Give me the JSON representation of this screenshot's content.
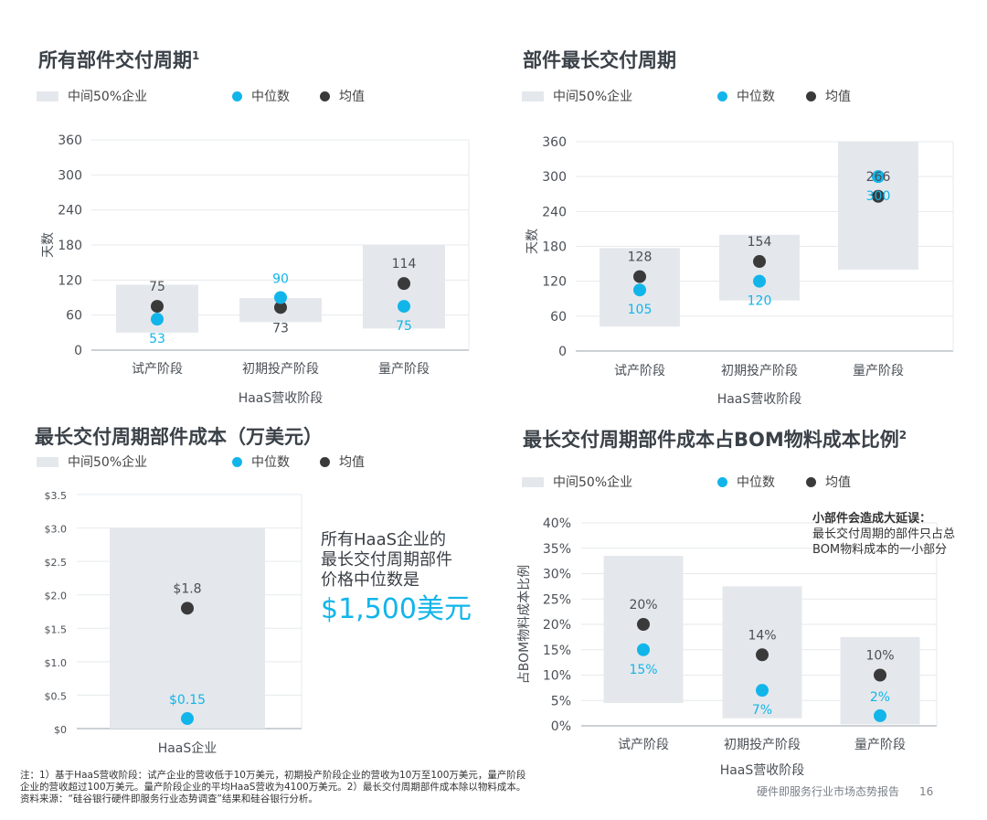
{
  "legend": {
    "iqr": "中间50%企业",
    "median": "中位数",
    "mean": "均值"
  },
  "colors": {
    "iqr_box": "#e4e8ec",
    "median": "#12b5ea",
    "mean": "#3a3a3a",
    "axis": "#9aa3ab",
    "grid": "#e6e9ec",
    "tick": "#4a4f55"
  },
  "panels": {
    "p1": {
      "title": "所有部件交付周期",
      "sup": "1"
    },
    "p2": {
      "title": "部件最长交付周期"
    },
    "p3": {
      "title": "最长交付周期部件成本（万美元）"
    },
    "p4": {
      "title": "最长交付周期部件成本占BOM物料成本比例",
      "sup": "2"
    }
  },
  "callout": {
    "text_lines": [
      "所有HaaS企业的",
      "最长交付周期部件",
      "价格中位数是"
    ],
    "value": "$1,500美元"
  },
  "insight": {
    "bold": "小部件会造成大延误：",
    "text": "最长交付周期的部件只占总BOM物料成本的一小部分"
  },
  "footnote": {
    "line1": "注：1）基于HaaS营收阶段：试产企业的营收低于10万美元，初期投产阶段企业的营收为10万至100万美元，量产阶段",
    "line2": "企业的营收超过100万美元。量产阶段企业的平均HaaS营收为4100万美元。2）最长交付周期部件成本除以物料成本。",
    "line3": "资料来源：“硅谷银行硬件即服务行业态势调查”结果和硅谷银行分析。"
  },
  "report": {
    "name": "硬件即服务行业市场态势报告",
    "page": "16"
  },
  "chart_data": [
    {
      "type": "box",
      "title": "所有部件交付周期",
      "ylabel": "天数",
      "xlabel": "HaaS营收阶段",
      "ylim": [
        0,
        360
      ],
      "yticks": [
        0,
        60,
        120,
        180,
        240,
        300,
        360
      ],
      "ytick_labels": [
        "0",
        "60",
        "120",
        "180",
        "240",
        "300",
        "360"
      ],
      "categories": [
        "试产阶段",
        "初期投产阶段",
        "量产阶段"
      ],
      "q1": [
        30,
        48,
        37
      ],
      "q3": [
        112,
        89,
        180
      ],
      "median": [
        53,
        90,
        75
      ],
      "mean": [
        75,
        73,
        114
      ],
      "median_labels": [
        "53",
        "90",
        "75"
      ],
      "mean_labels": [
        "75",
        "73",
        "114"
      ]
    },
    {
      "type": "box",
      "title": "部件最长交付周期",
      "ylabel": "天数",
      "xlabel": "HaaS营收阶段",
      "ylim": [
        0,
        360
      ],
      "yticks": [
        0,
        60,
        120,
        180,
        240,
        300,
        360
      ],
      "ytick_labels": [
        "0",
        "60",
        "120",
        "180",
        "240",
        "300",
        "360"
      ],
      "categories": [
        "试产阶段",
        "初期投产阶段",
        "量产阶段"
      ],
      "q1": [
        42,
        87,
        140
      ],
      "q3": [
        177,
        200,
        360
      ],
      "median": [
        105,
        120,
        300
      ],
      "mean": [
        128,
        154,
        266
      ],
      "median_labels": [
        "105",
        "120",
        "300"
      ],
      "mean_labels": [
        "128",
        "154",
        "266"
      ]
    },
    {
      "type": "box",
      "title": "最长交付周期部件成本（万美元）",
      "ylabel": "",
      "xlabel": "",
      "ylim": [
        0,
        3.5
      ],
      "yticks": [
        0,
        0.5,
        1.0,
        1.5,
        2.0,
        2.5,
        3.0,
        3.5
      ],
      "ytick_labels": [
        "$0",
        "$0.5",
        "$1.0",
        "$1.5",
        "$2.0",
        "$2.5",
        "$3.0",
        "$3.5"
      ],
      "categories": [
        "HaaS企业"
      ],
      "q1": [
        0
      ],
      "q3": [
        3.0
      ],
      "median": [
        0.15
      ],
      "mean": [
        1.8
      ],
      "median_labels": [
        "$0.15"
      ],
      "mean_labels": [
        "$1.8"
      ]
    },
    {
      "type": "box",
      "title": "最长交付周期部件成本占BOM物料成本比例",
      "ylabel": "占BOM物料成本比例",
      "xlabel": "HaaS营收阶段",
      "ylim": [
        0,
        40
      ],
      "yticks": [
        0,
        5,
        10,
        15,
        20,
        25,
        30,
        35,
        40
      ],
      "ytick_labels": [
        "0%",
        "5%",
        "10%",
        "15%",
        "20%",
        "25%",
        "30%",
        "35%",
        "40%"
      ],
      "categories": [
        "试产阶段",
        "初期投产阶段",
        "量产阶段"
      ],
      "q1": [
        4.5,
        1.5,
        0.3
      ],
      "q3": [
        33.5,
        27.5,
        17.5
      ],
      "median": [
        15,
        7,
        2
      ],
      "mean": [
        20,
        14,
        10
      ],
      "median_labels": [
        "15%",
        "7%",
        "2%"
      ],
      "mean_labels": [
        "20%",
        "14%",
        "10%"
      ]
    }
  ]
}
